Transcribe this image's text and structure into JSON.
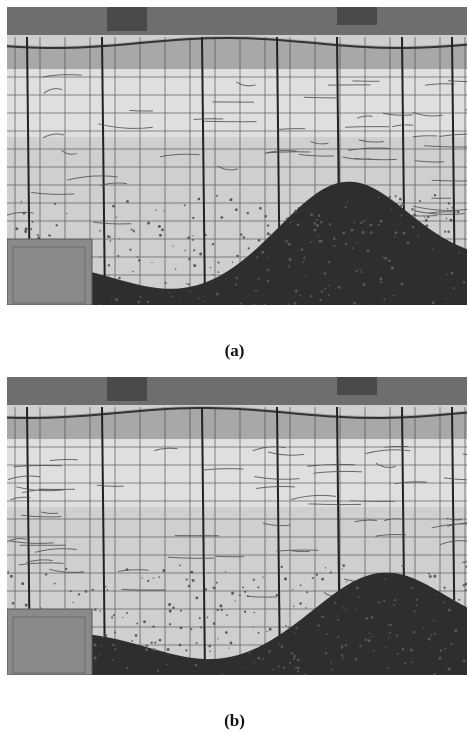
{
  "figure": {
    "panels": [
      {
        "id": "a",
        "caption": "(a)",
        "mound_crest_fraction": 0.74,
        "mound_height_fraction": 0.4
      },
      {
        "id": "b",
        "caption": "(b)",
        "mound_crest_fraction": 0.82,
        "mound_height_fraction": 0.33
      }
    ]
  },
  "colors": {
    "water": "#cfcfcf",
    "water_light": "#e6e6e6",
    "surface_band": "#a8a8a8",
    "sediment": "#2e2e2e",
    "sediment_speck": "#5a5a5a",
    "grid": "#3c3c3c",
    "block": "#8a8a8a",
    "top_frame": "#6e6e6e"
  }
}
